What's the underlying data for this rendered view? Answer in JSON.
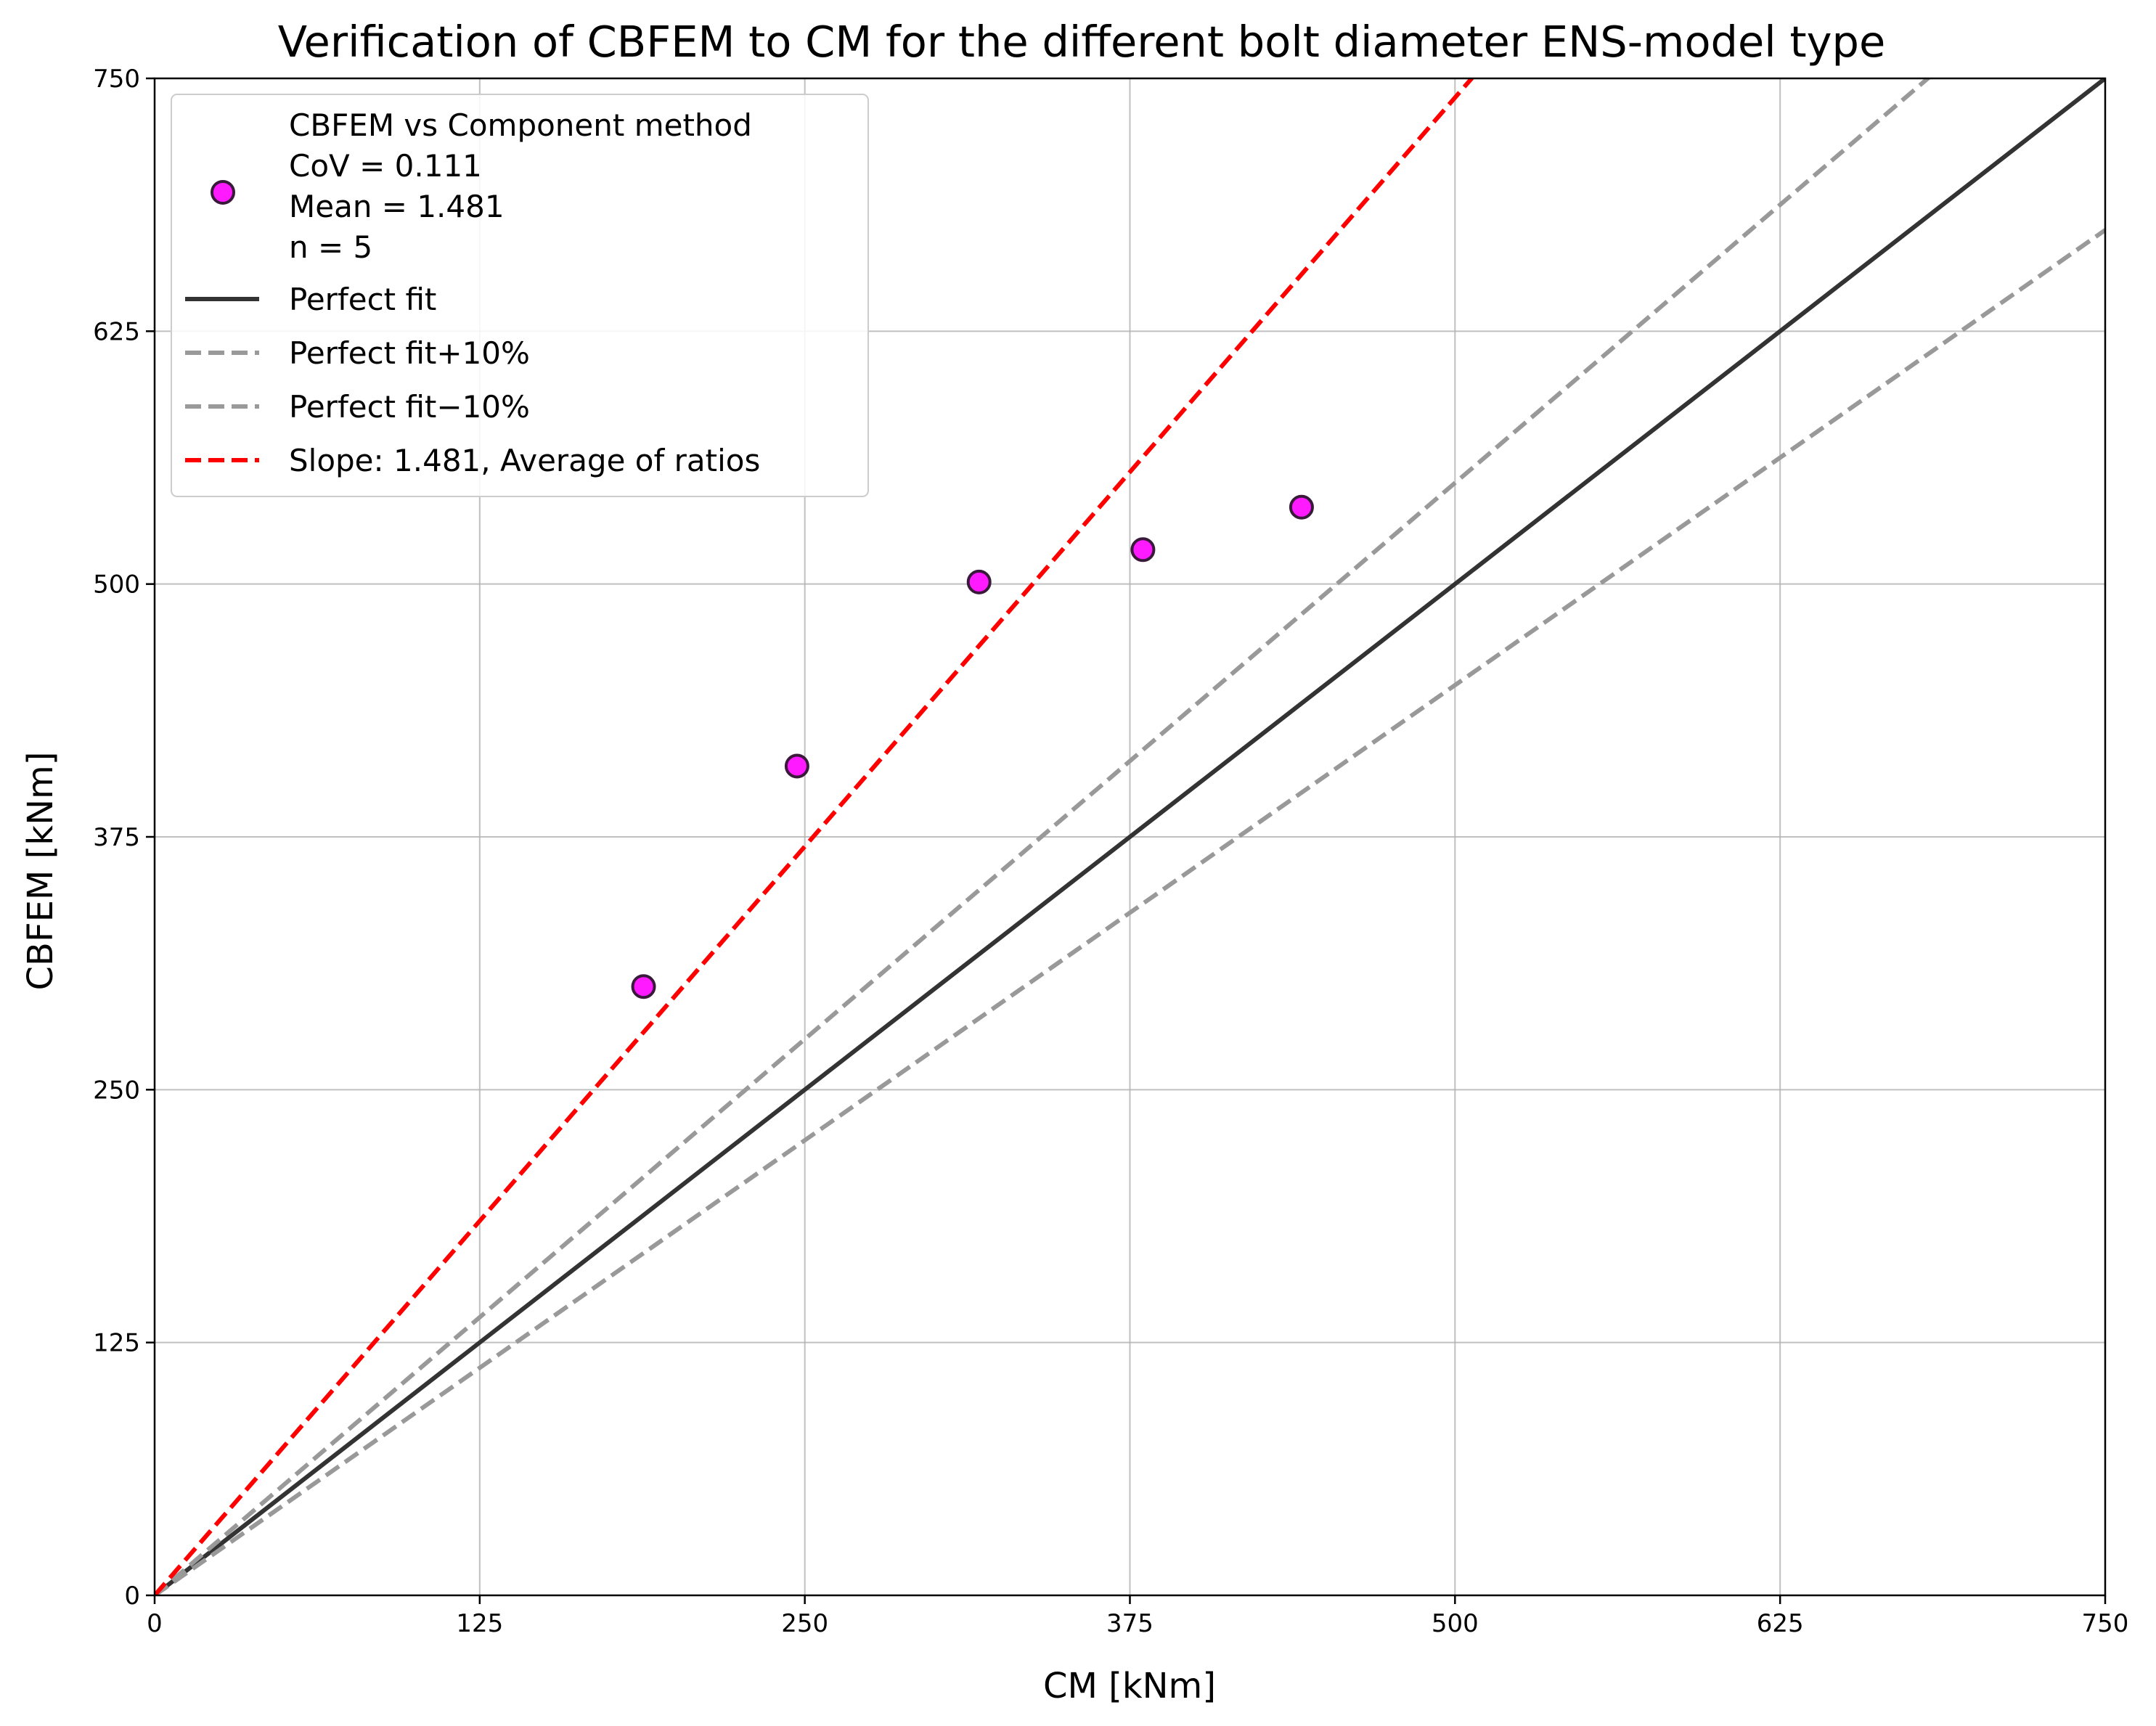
{
  "chart_data": {
    "type": "scatter",
    "title": "Verification of CBFEM to CM for the different bolt diameter ENS-model type",
    "xlabel": "CM [kNm]",
    "ylabel": "CBFEM [kNm]",
    "xlim": [
      0,
      750
    ],
    "ylim": [
      0,
      750
    ],
    "xticks": [
      "0",
      "125",
      "250",
      "375",
      "500",
      "625",
      "750"
    ],
    "yticks": [
      "0",
      "125",
      "250",
      "375",
      "500",
      "625",
      "750"
    ],
    "grid": true,
    "legend_position": "top-left",
    "series": [
      {
        "name": "CBFEM vs Component method",
        "kind": "scatter",
        "color": "#ff1aff",
        "edge_color": "#3a1a3a",
        "x": [
          188,
          247,
          317,
          380,
          441
        ],
        "y": [
          301,
          410,
          501,
          517,
          538
        ]
      },
      {
        "name": "Perfect fit",
        "kind": "line",
        "style": "solid",
        "color": "#333333",
        "slope": 1.0
      },
      {
        "name": "Perfect fit+10%",
        "kind": "line",
        "style": "dashed",
        "color": "#999999",
        "slope": 1.1
      },
      {
        "name": "Perfect fit−10%",
        "kind": "line",
        "style": "dashed",
        "color": "#999999",
        "slope": 0.9
      },
      {
        "name": "Slope: 1.481, Average of ratios",
        "kind": "line",
        "style": "dashed",
        "color": "#ff0000",
        "slope": 1.481
      }
    ],
    "legend_stats": [
      "CoV = 0.111",
      "Mean = 1.481",
      "n = 5"
    ]
  }
}
